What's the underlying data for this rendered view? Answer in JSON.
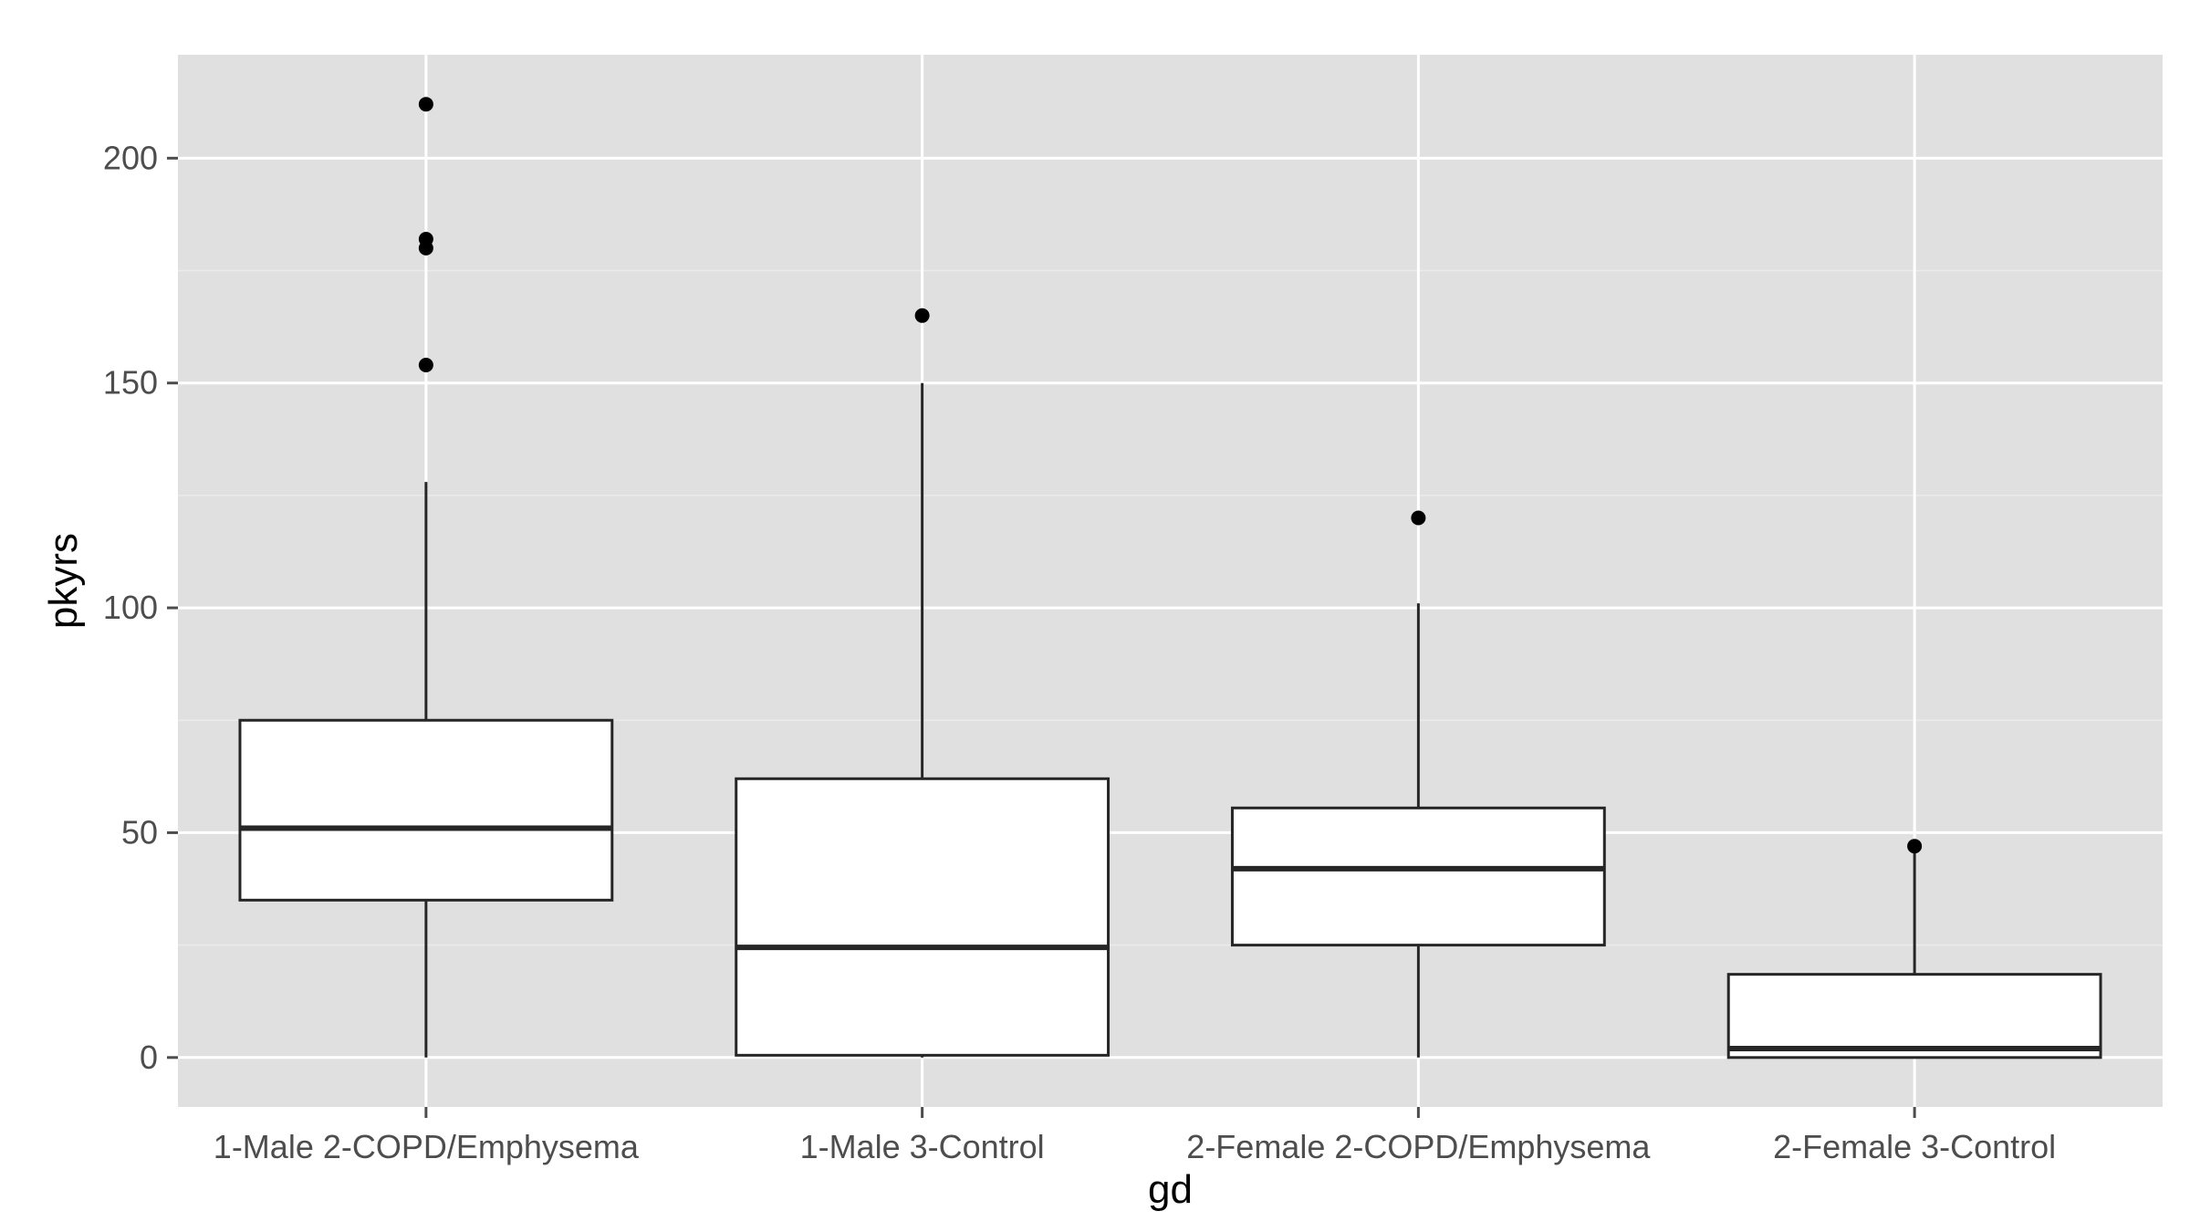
{
  "chart_data": {
    "type": "boxplot",
    "xlabel": "gd",
    "ylabel": "pkyrs",
    "categories": [
      "1-Male 2-COPD/Emphysema",
      "1-Male 3-Control",
      "2-Female 2-COPD/Emphysema",
      "2-Female 3-Control"
    ],
    "boxes": [
      {
        "whisker_low": 0,
        "q1": 35,
        "median": 51,
        "q3": 75,
        "whisker_high": 128,
        "outliers": [
          154,
          180,
          182,
          212
        ]
      },
      {
        "whisker_low": 0,
        "q1": 0.5,
        "median": 24.5,
        "q3": 62,
        "whisker_high": 150,
        "outliers": [
          165
        ]
      },
      {
        "whisker_low": 0,
        "q1": 25,
        "median": 42,
        "q3": 55.5,
        "whisker_high": 101,
        "outliers": [
          120
        ]
      },
      {
        "whisker_low": 0,
        "q1": 0,
        "median": 2,
        "q3": 18.5,
        "whisker_high": 47,
        "outliers": [
          47
        ]
      }
    ],
    "yticks": [
      0,
      50,
      100,
      150,
      200
    ],
    "ylim": [
      -11,
      223
    ],
    "grid": true,
    "colors": {
      "panel": "#e0e0e0",
      "grid_major": "#ffffff",
      "grid_minor": "#ebebeb",
      "box_fill": "#ffffff",
      "box_stroke": "#262626",
      "point": "#000000"
    }
  }
}
